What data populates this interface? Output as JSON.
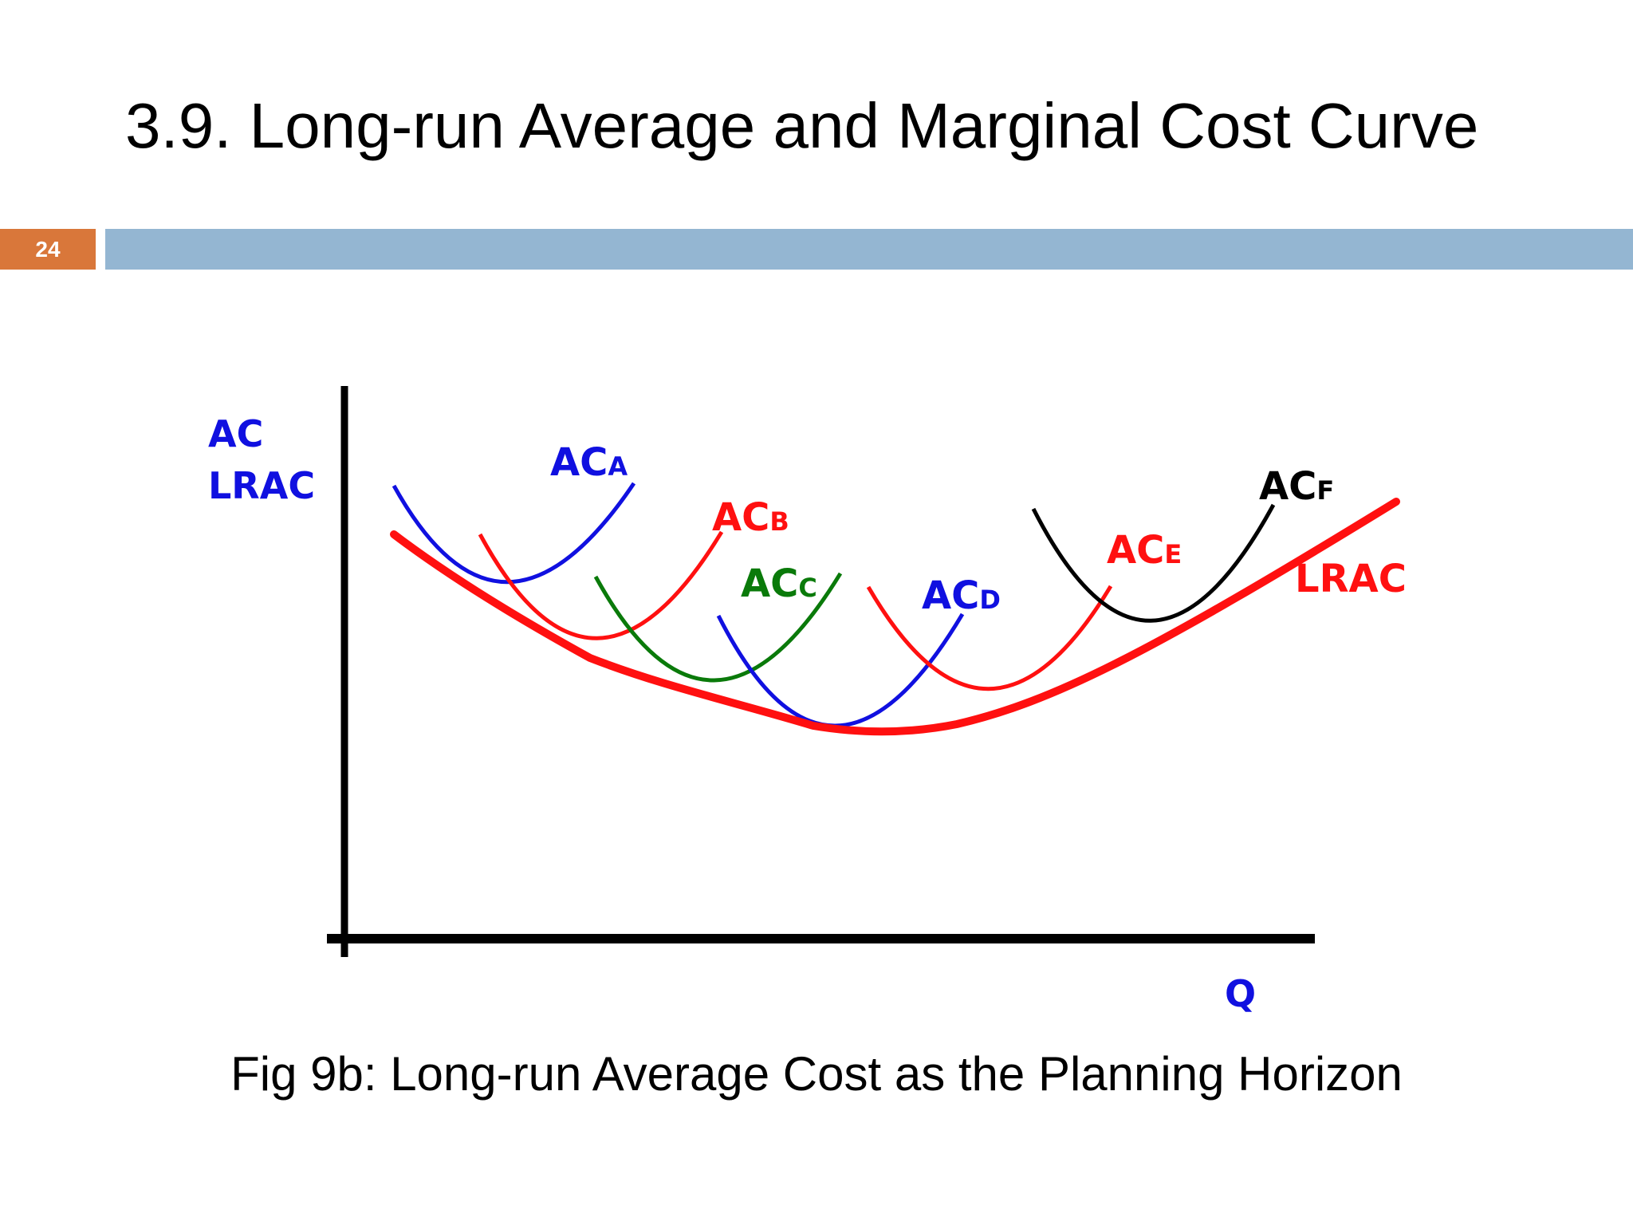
{
  "slide": {
    "title": "3.9. Long-run Average and Marginal Cost Curve",
    "number": "24",
    "caption": "Fig 9b: Long-run Average Cost as the Planning Horizon"
  },
  "diagram": {
    "y_axis_label_line1": "AC",
    "y_axis_label_line2": "LRAC",
    "x_axis_label": "Q",
    "curves": [
      {
        "id": "ac_a",
        "prefix": "AC",
        "subscript": "A",
        "color": "#1010e0"
      },
      {
        "id": "ac_b",
        "prefix": "AC",
        "subscript": "B",
        "color": "#ff1010"
      },
      {
        "id": "ac_c",
        "prefix": "AC",
        "subscript": "C",
        "color": "#0a7a0a"
      },
      {
        "id": "ac_d",
        "prefix": "AC",
        "subscript": "D",
        "color": "#1010e0"
      },
      {
        "id": "ac_e",
        "prefix": "AC",
        "subscript": "E",
        "color": "#ff1010"
      },
      {
        "id": "ac_f",
        "prefix": "AC",
        "subscript": "F",
        "color": "#000000"
      },
      {
        "id": "lrac",
        "label": "LRAC",
        "color": "#ff1010"
      }
    ],
    "colors": {
      "axis": "#000000",
      "axis_labels": "#1010e0",
      "title_bar": "#94b6d2",
      "number_box": "#d9773a"
    }
  }
}
